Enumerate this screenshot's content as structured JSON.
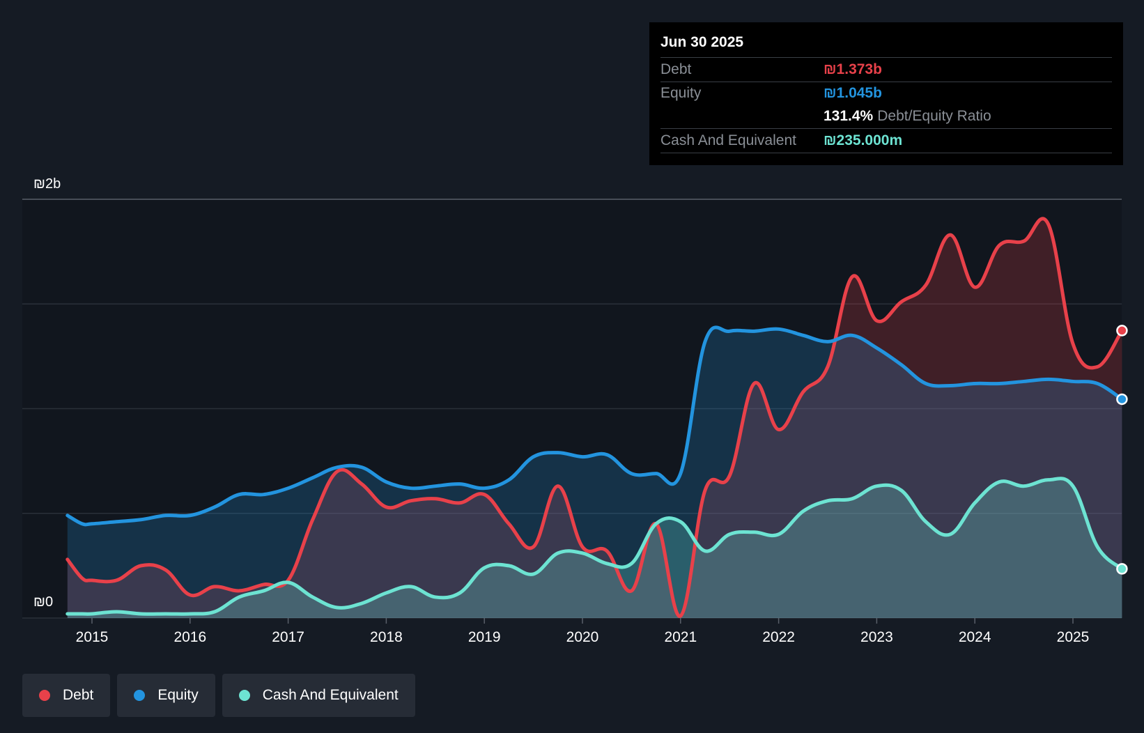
{
  "chart_data": {
    "type": "area",
    "x": [
      2014.75,
      2014.9,
      2015.0,
      2015.25,
      2015.5,
      2015.75,
      2016.0,
      2016.25,
      2016.5,
      2016.75,
      2017.0,
      2017.25,
      2017.5,
      2017.75,
      2018.0,
      2018.25,
      2018.5,
      2018.75,
      2019.0,
      2019.25,
      2019.5,
      2019.75,
      2020.0,
      2020.25,
      2020.5,
      2020.75,
      2021.0,
      2021.25,
      2021.5,
      2021.75,
      2022.0,
      2022.25,
      2022.5,
      2022.75,
      2023.0,
      2023.25,
      2023.5,
      2023.75,
      2024.0,
      2024.25,
      2024.5,
      2024.75,
      2025.0,
      2025.25,
      2025.5
    ],
    "series": [
      {
        "name": "Debt",
        "color": "#e8414a",
        "values": [
          0.28,
          0.19,
          0.18,
          0.18,
          0.25,
          0.23,
          0.11,
          0.15,
          0.13,
          0.16,
          0.18,
          0.47,
          0.7,
          0.64,
          0.53,
          0.56,
          0.57,
          0.55,
          0.59,
          0.45,
          0.34,
          0.63,
          0.34,
          0.32,
          0.13,
          0.45,
          0.01,
          0.61,
          0.68,
          1.12,
          0.9,
          1.08,
          1.2,
          1.63,
          1.42,
          1.51,
          1.59,
          1.83,
          1.58,
          1.78,
          1.8,
          1.88,
          1.31,
          1.2,
          1.373
        ]
      },
      {
        "name": "Equity",
        "color": "#2394df",
        "values": [
          0.49,
          0.45,
          0.45,
          0.46,
          0.47,
          0.49,
          0.49,
          0.53,
          0.59,
          0.59,
          0.62,
          0.67,
          0.72,
          0.72,
          0.65,
          0.62,
          0.63,
          0.64,
          0.62,
          0.66,
          0.77,
          0.79,
          0.77,
          0.78,
          0.69,
          0.69,
          0.69,
          1.32,
          1.37,
          1.37,
          1.38,
          1.35,
          1.32,
          1.35,
          1.29,
          1.21,
          1.12,
          1.11,
          1.12,
          1.12,
          1.13,
          1.14,
          1.13,
          1.12,
          1.045
        ]
      },
      {
        "name": "Cash And Equivalent",
        "color": "#6de3d2",
        "values": [
          0.02,
          0.02,
          0.02,
          0.03,
          0.02,
          0.02,
          0.02,
          0.03,
          0.1,
          0.13,
          0.17,
          0.1,
          0.05,
          0.07,
          0.12,
          0.15,
          0.1,
          0.12,
          0.24,
          0.25,
          0.21,
          0.31,
          0.31,
          0.26,
          0.26,
          0.45,
          0.46,
          0.32,
          0.4,
          0.41,
          0.4,
          0.51,
          0.56,
          0.57,
          0.63,
          0.61,
          0.46,
          0.4,
          0.55,
          0.65,
          0.63,
          0.66,
          0.63,
          0.34,
          0.235
        ]
      }
    ],
    "xticks": [
      "2015",
      "2016",
      "2017",
      "2018",
      "2019",
      "2020",
      "2021",
      "2022",
      "2023",
      "2024",
      "2025"
    ],
    "ylim": [
      0,
      2
    ],
    "ytick_labels": {
      "top": "₪2b",
      "bottom": "₪0"
    },
    "grid": true,
    "legend_position": "bottom-left"
  },
  "tooltip": {
    "date": "Jun 30 2025",
    "debt_label": "Debt",
    "debt_value": "₪1.373b",
    "equity_label": "Equity",
    "equity_value": "₪1.045b",
    "ratio_value": "131.4%",
    "ratio_label": "Debt/Equity Ratio",
    "cash_label": "Cash And Equivalent",
    "cash_value": "₪235.000m"
  },
  "legend": [
    {
      "label": "Debt",
      "color": "#e8414a"
    },
    {
      "label": "Equity",
      "color": "#2394df"
    },
    {
      "label": "Cash And Equivalent",
      "color": "#6de3d2"
    }
  ]
}
